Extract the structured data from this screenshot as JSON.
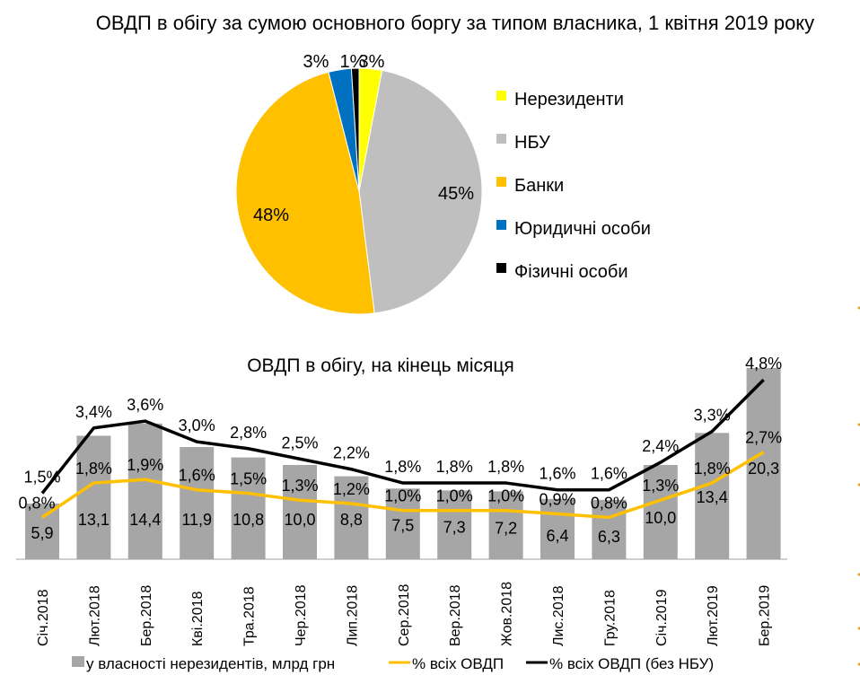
{
  "chart_data": [
    {
      "type": "pie",
      "title": "ОВДП в обігу  за сумою основного боргу за типом власника, 1 квітня 2019 року",
      "slices": [
        {
          "label": "Нерезиденти",
          "value": 3,
          "value_label": "3%",
          "color": "#ffff00"
        },
        {
          "label": "НБУ",
          "value": 45,
          "value_label": "45%",
          "color": "#bfbfbf"
        },
        {
          "label": "Банки",
          "value": 48,
          "value_label": "48%",
          "color": "#ffc000"
        },
        {
          "label": "Юридичні особи",
          "value": 3,
          "value_label": "3%",
          "color": "#0070c0"
        },
        {
          "label": "Фізичні особи",
          "value": 1,
          "value_label": "1%",
          "color": "#000000"
        }
      ],
      "legend": "right"
    },
    {
      "type": "bar+line",
      "title": "ОВДП в обігу, на кінець місяця",
      "categories": [
        "Січ.2018",
        "Лют.2018",
        "Бер.2018",
        "Кві.2018",
        "Тра.2018",
        "Чер.2018",
        "Лип.2018",
        "Сер.2018",
        "Вер.2018",
        "Жов.2018",
        "Лис.2018",
        "Гру.2018",
        "Січ.2019",
        "Лют.2019",
        "Бер.2019"
      ],
      "series": [
        {
          "name": "у власності нерезидентів, млрд грн",
          "type": "bar",
          "color": "#a6a6a6",
          "values": [
            5.9,
            13.1,
            14.4,
            11.9,
            10.8,
            10.0,
            8.8,
            7.5,
            7.3,
            7.2,
            6.4,
            6.3,
            10.0,
            13.4,
            20.3
          ],
          "labels": [
            "5,9",
            "13,1",
            "14,4",
            "11,9",
            "10,8",
            "10,0",
            "8,8",
            "7,5",
            "7,3",
            "7,2",
            "6,4",
            "6,3",
            "10,0",
            "13,4",
            "20,3"
          ]
        },
        {
          "name": "% всіх ОВДП",
          "type": "line",
          "color": "#ffc000",
          "values": [
            0.8,
            1.8,
            1.9,
            1.6,
            1.5,
            1.3,
            1.2,
            1.0,
            1.0,
            1.0,
            0.9,
            0.8,
            1.3,
            1.8,
            2.7
          ],
          "labels": [
            "0,8%",
            "1,8%",
            "1,9%",
            "1,6%",
            "1,5%",
            "1,3%",
            "1,2%",
            "1,0%",
            "1,0%",
            "1,0%",
            "0,9%",
            "0,8%",
            "1,3%",
            "1,8%",
            "2,7%"
          ]
        },
        {
          "name": "% всіх ОВДП (без НБУ)",
          "type": "line",
          "color": "#000000",
          "values": [
            1.5,
            3.4,
            3.6,
            3.0,
            2.8,
            2.5,
            2.2,
            1.8,
            1.8,
            1.8,
            1.6,
            1.6,
            2.4,
            3.3,
            4.8
          ],
          "labels": [
            "1,5%",
            "3,4%",
            "3,6%",
            "3,0%",
            "2,8%",
            "2,5%",
            "2,2%",
            "1,8%",
            "1,8%",
            "1,8%",
            "1,6%",
            "1,6%",
            "2,4%",
            "3,3%",
            "4,8%"
          ]
        }
      ],
      "legend": "bottom",
      "grid": false
    }
  ]
}
